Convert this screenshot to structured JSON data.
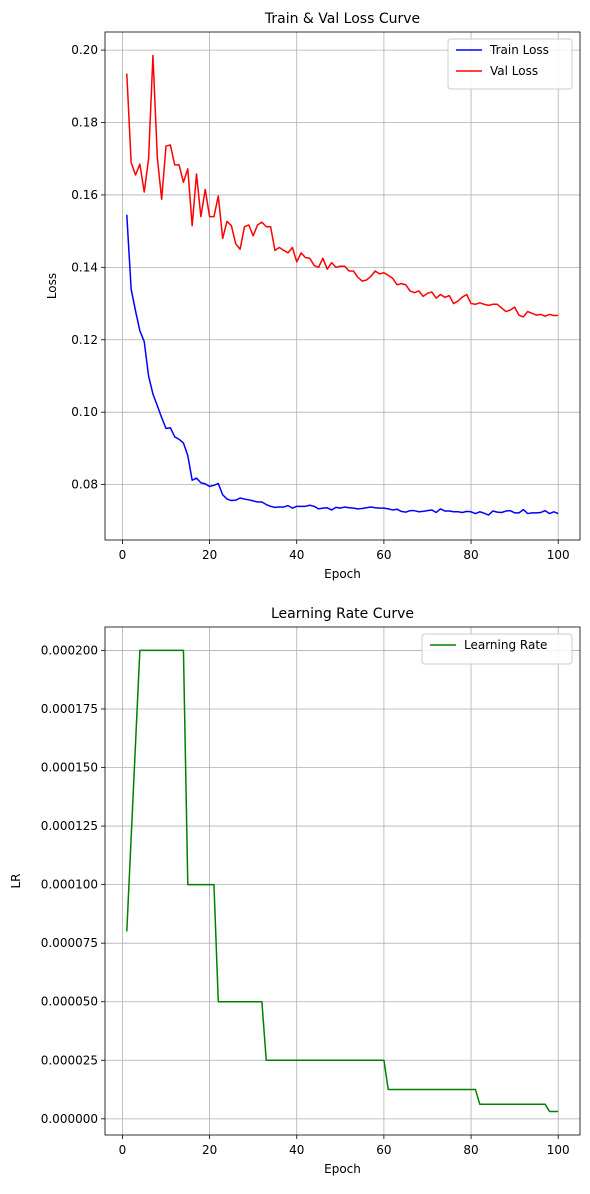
{
  "chart_data": [
    {
      "type": "line",
      "title": "Train & Val Loss Curve",
      "xlabel": "Epoch",
      "ylabel": "Loss",
      "xlim": [
        -4,
        105
      ],
      "ylim": [
        0.0647,
        0.205
      ],
      "xticks": [
        0,
        20,
        40,
        60,
        80,
        100
      ],
      "xtick_labels": [
        "0",
        "20",
        "40",
        "60",
        "80",
        "100"
      ],
      "yticks": [
        0.08,
        0.1,
        0.12,
        0.14,
        0.16,
        0.18,
        0.2
      ],
      "ytick_labels": [
        "0.08",
        "0.10",
        "0.12",
        "0.14",
        "0.16",
        "0.18",
        "0.20"
      ],
      "grid": true,
      "legend": "top-right",
      "x": [
        1,
        2,
        3,
        4,
        5,
        6,
        7,
        8,
        9,
        10,
        11,
        12,
        13,
        14,
        15,
        16,
        17,
        18,
        19,
        20,
        21,
        22,
        23,
        24,
        25,
        26,
        27,
        28,
        29,
        30,
        31,
        32,
        33,
        34,
        35,
        36,
        37,
        38,
        39,
        40,
        41,
        42,
        43,
        44,
        45,
        46,
        47,
        48,
        49,
        50,
        51,
        52,
        53,
        54,
        55,
        56,
        57,
        58,
        59,
        60,
        61,
        62,
        63,
        64,
        65,
        66,
        67,
        68,
        69,
        70,
        71,
        72,
        73,
        74,
        75,
        76,
        77,
        78,
        79,
        80,
        81,
        82,
        83,
        84,
        85,
        86,
        87,
        88,
        89,
        90,
        91,
        92,
        93,
        94,
        95,
        96,
        97,
        98,
        99,
        100
      ],
      "series": [
        {
          "name": "Train Loss",
          "color": "#0000ff",
          "values": [
            0.1545,
            0.134,
            0.128,
            0.1225,
            0.1195,
            0.11,
            0.105,
            0.1018,
            0.0985,
            0.0955,
            0.0957,
            0.0932,
            0.0925,
            0.0915,
            0.088,
            0.0812,
            0.0818,
            0.0805,
            0.0802,
            0.0795,
            0.0798,
            0.0803,
            0.0772,
            0.076,
            0.0756,
            0.0757,
            0.0763,
            0.076,
            0.0758,
            0.0755,
            0.0752,
            0.0752,
            0.0745,
            0.074,
            0.0737,
            0.0738,
            0.0738,
            0.0742,
            0.0735,
            0.074,
            0.074,
            0.074,
            0.0743,
            0.074,
            0.0733,
            0.0735,
            0.0736,
            0.073,
            0.0737,
            0.0735,
            0.0738,
            0.0736,
            0.0735,
            0.0733,
            0.0734,
            0.0736,
            0.0738,
            0.0736,
            0.0735,
            0.0735,
            0.0733,
            0.073,
            0.0732,
            0.0726,
            0.0724,
            0.0728,
            0.0728,
            0.0725,
            0.0726,
            0.0728,
            0.073,
            0.0723,
            0.0733,
            0.0727,
            0.0727,
            0.0725,
            0.0725,
            0.0723,
            0.0726,
            0.0725,
            0.072,
            0.0725,
            0.0721,
            0.0716,
            0.0727,
            0.0724,
            0.0723,
            0.0727,
            0.0728,
            0.0722,
            0.0722,
            0.0731,
            0.072,
            0.0722,
            0.0722,
            0.0723,
            0.0728,
            0.072,
            0.0725,
            0.072
          ]
        },
        {
          "name": "Val Loss",
          "color": "#ff0000",
          "values": [
            0.1935,
            0.169,
            0.1655,
            0.1685,
            0.1608,
            0.17,
            0.1985,
            0.1705,
            0.1588,
            0.1735,
            0.1738,
            0.1683,
            0.1683,
            0.1635,
            0.1672,
            0.1515,
            0.1658,
            0.154,
            0.1615,
            0.154,
            0.154,
            0.1597,
            0.148,
            0.1527,
            0.1515,
            0.1465,
            0.145,
            0.1512,
            0.1517,
            0.1487,
            0.1517,
            0.1525,
            0.1512,
            0.1512,
            0.1447,
            0.1455,
            0.1447,
            0.144,
            0.1455,
            0.1415,
            0.144,
            0.1427,
            0.1425,
            0.1405,
            0.14,
            0.1425,
            0.1395,
            0.1413,
            0.14,
            0.1403,
            0.1403,
            0.139,
            0.139,
            0.1373,
            0.1362,
            0.1365,
            0.1375,
            0.139,
            0.1382,
            0.1385,
            0.1378,
            0.137,
            0.1352,
            0.1355,
            0.1352,
            0.1335,
            0.133,
            0.1335,
            0.132,
            0.1328,
            0.1332,
            0.1315,
            0.1325,
            0.1317,
            0.1322,
            0.13,
            0.1307,
            0.1318,
            0.1325,
            0.13,
            0.1298,
            0.1302,
            0.1298,
            0.1295,
            0.1298,
            0.1298,
            0.1288,
            0.1278,
            0.1282,
            0.129,
            0.1268,
            0.1263,
            0.1278,
            0.1273,
            0.1268,
            0.127,
            0.1265,
            0.127,
            0.1267,
            0.1267
          ]
        }
      ]
    },
    {
      "type": "line",
      "title": "Learning Rate Curve",
      "xlabel": "Epoch",
      "ylabel": "LR",
      "xlim": [
        -4,
        105
      ],
      "ylim": [
        -6.9e-06,
        0.00021
      ],
      "xticks": [
        0,
        20,
        40,
        60,
        80,
        100
      ],
      "xtick_labels": [
        "0",
        "20",
        "40",
        "60",
        "80",
        "100"
      ],
      "yticks": [
        0.0,
        2.5e-05,
        5e-05,
        7.5e-05,
        0.0001,
        0.000125,
        0.00015,
        0.000175,
        0.0002
      ],
      "ytick_labels": [
        "0.000000",
        "0.000025",
        "0.000050",
        "0.000075",
        "0.000100",
        "0.000125",
        "0.000150",
        "0.000175",
        "0.000200"
      ],
      "grid": true,
      "legend": "top-right",
      "x": [
        1,
        4,
        14,
        15,
        21,
        22,
        32,
        33,
        60,
        61,
        81,
        82,
        97,
        98,
        100
      ],
      "series": [
        {
          "name": "Learning Rate",
          "color": "#008000",
          "values": [
            8e-05,
            0.0002,
            0.0002,
            0.0001,
            0.0001,
            5e-05,
            5e-05,
            2.5e-05,
            2.5e-05,
            1.25e-05,
            1.25e-05,
            6.25e-06,
            6.25e-06,
            3.125e-06,
            3.125e-06
          ]
        }
      ]
    }
  ]
}
